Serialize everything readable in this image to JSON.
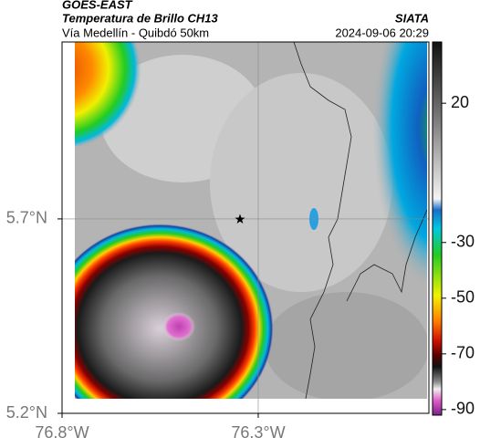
{
  "header": {
    "title": "GOES-EAST",
    "subtitle": "Temperatura de Brillo CH13",
    "source": "SIATA",
    "region": "Vía Medellín - Quibdó 50km",
    "datetime": "2024-09-06 20:29"
  },
  "map": {
    "xlim": [
      -76.8,
      -75.865
    ],
    "ylim": [
      5.2,
      6.155
    ],
    "xticks": [
      {
        "value": -76.8,
        "label": "76.8°W"
      },
      {
        "value": -76.3,
        "label": "76.3°W"
      }
    ],
    "yticks": [
      {
        "value": 5.2,
        "label": "5.2°N"
      },
      {
        "value": 5.7,
        "label": "5.7°N"
      }
    ],
    "grid": true
  },
  "colorbar": {
    "clim": [
      42,
      -92
    ],
    "ticks": [
      20,
      -30,
      -50,
      -70,
      -90
    ]
  }
}
